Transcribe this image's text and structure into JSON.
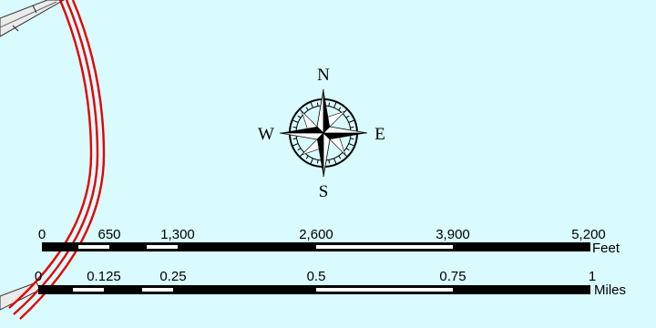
{
  "map": {
    "background_color": "#d9fbfd",
    "feature_color": "#e60000",
    "road_fill_color": "#ebebeb"
  },
  "north_arrow": {
    "north": "N",
    "south": "S",
    "east": "E",
    "west": "W"
  },
  "scale_feet": {
    "unit": "Feet",
    "ticks": [
      "0",
      "650",
      "1,300",
      "2,600",
      "3,900",
      "5,200"
    ]
  },
  "scale_miles": {
    "unit": "Miles",
    "ticks": [
      "0",
      "0.125",
      "0.25",
      "0.5",
      "0.75",
      "1"
    ]
  }
}
